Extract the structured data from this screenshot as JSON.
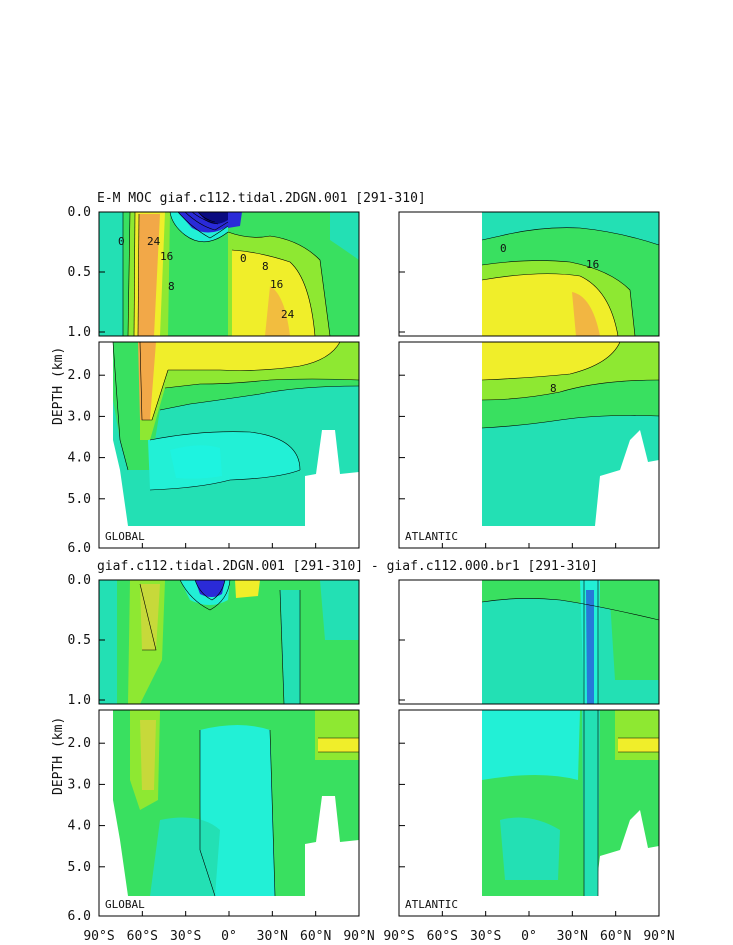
{
  "titles": {
    "top": "E-M MOC  giaf.c112.tidal.2DGN.001 [291-310]",
    "bottom": "giaf.c112.tidal.2DGN.001 [291-310] - giaf.c112.000.br1 [291-310]"
  },
  "y_axis_label": "DEPTH (km)",
  "upper_ticks": [
    "0.0",
    "0.5",
    "1.0"
  ],
  "lower_ticks": [
    "2.0",
    "3.0",
    "4.0",
    "5.0",
    "6.0"
  ],
  "x_ticks": [
    "90°S",
    "60°S",
    "30°S",
    "0°",
    "30°N",
    "60°N",
    "90°N"
  ],
  "panel_labels": {
    "global": "GLOBAL",
    "atlantic": "ATLANTIC"
  },
  "contour_labels": [
    "24",
    "16",
    "8",
    "0",
    "24",
    "16",
    "8",
    "0",
    "16",
    "8",
    "0"
  ],
  "colors": {
    "teal": "#23e0b4",
    "cyan": "#22f0d6",
    "green": "#39e060",
    "ltgreen": "#8ee832",
    "yellow": "#f0ee2a",
    "orange": "#f2a848",
    "blue": "#2a2ad8",
    "navy": "#0a0a80"
  },
  "chart_data": {
    "type": "heatmap",
    "title": "E-M MOC  giaf.c112.tidal.2DGN.001 [291-310]",
    "subtitle": "giaf.c112.tidal.2DGN.001 [291-310] - giaf.c112.000.br1 [291-310]",
    "ylabel": "DEPTH (km)",
    "x": [
      "90°S",
      "60°S",
      "30°S",
      "0°",
      "30°N",
      "60°N",
      "90°N"
    ],
    "ylim": [
      0,
      6
    ],
    "panels": [
      "GLOBAL",
      "ATLANTIC",
      "GLOBAL",
      "ATLANTIC"
    ]
  }
}
